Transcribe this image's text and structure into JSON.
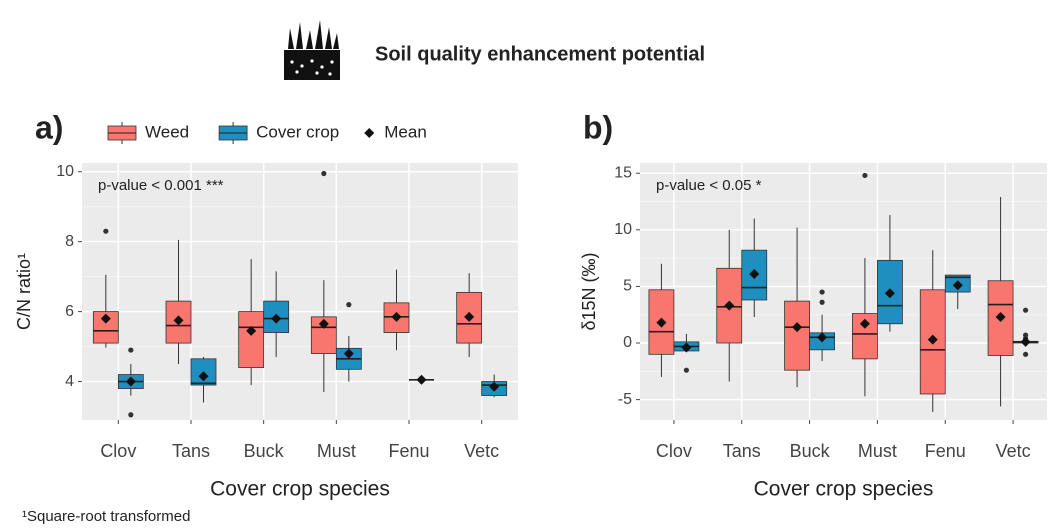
{
  "header": {
    "title": "Soil quality enhancement potential",
    "footnote": "¹Square-root transformed"
  },
  "chart_data": [
    {
      "type": "box",
      "label": "a)",
      "ylabel": "C/N ratio¹",
      "xlabel": "Cover crop species",
      "annotation": "p-value < 0.001 ***",
      "legend": true,
      "mean_label": "Mean",
      "grid": true,
      "ylim": [
        2.9,
        10.25
      ],
      "yticks": [
        4,
        6,
        8,
        10
      ],
      "categories": [
        "Clov",
        "Tans",
        "Buck",
        "Must",
        "Fenu",
        "Vetc"
      ],
      "series": [
        {
          "name": "Weed",
          "color": "#f8766d",
          "low": [
            4.97,
            4.5,
            3.9,
            3.7,
            4.9,
            4.7
          ],
          "q1": [
            5.1,
            5.1,
            4.4,
            4.8,
            5.4,
            5.1
          ],
          "median": [
            5.45,
            5.6,
            5.55,
            5.55,
            5.85,
            5.65
          ],
          "q3": [
            6.0,
            6.3,
            6.0,
            5.85,
            6.25,
            6.55
          ],
          "high": [
            7.05,
            8.05,
            7.5,
            6.9,
            7.2,
            7.1
          ],
          "mean": [
            5.8,
            5.75,
            5.45,
            5.65,
            5.85,
            5.85
          ],
          "outliers": [
            [
              8.3
            ],
            [],
            [],
            [
              9.95
            ],
            [],
            []
          ]
        },
        {
          "name": "Cover crop",
          "color": "#1f8fbf",
          "low": [
            3.6,
            3.4,
            4.7,
            4.0,
            4.05,
            3.55
          ],
          "q1": [
            3.8,
            3.9,
            5.4,
            4.35,
            4.05,
            3.6
          ],
          "median": [
            4.0,
            3.95,
            5.8,
            4.65,
            4.05,
            3.9
          ],
          "q3": [
            4.2,
            4.65,
            6.3,
            4.95,
            4.05,
            4.0
          ],
          "high": [
            4.5,
            4.7,
            7.15,
            5.3,
            4.05,
            4.2
          ],
          "mean": [
            4.0,
            4.15,
            5.8,
            4.8,
            4.05,
            3.85
          ],
          "outliers": [
            [
              4.9,
              3.05
            ],
            [],
            [],
            [
              6.2
            ],
            [],
            []
          ]
        }
      ]
    },
    {
      "type": "box",
      "label": "b)",
      "ylabel": "δ15N (‰)",
      "xlabel": "Cover crop species",
      "annotation": "p-value < 0.05 *",
      "legend": false,
      "grid": true,
      "ylim": [
        -6.8,
        15.9
      ],
      "yticks": [
        -5,
        0,
        5,
        10,
        15
      ],
      "categories": [
        "Clov",
        "Tans",
        "Buck",
        "Must",
        "Fenu",
        "Vetc"
      ],
      "series": [
        {
          "name": "Weed",
          "color": "#f8766d",
          "low": [
            -3,
            -3.4,
            -3.9,
            -4.7,
            -6.1,
            -5.6
          ],
          "q1": [
            -1,
            0,
            -2.4,
            -1.4,
            -4.5,
            -1.1
          ],
          "median": [
            1,
            3.2,
            1.4,
            0.8,
            -0.6,
            3.4
          ],
          "q3": [
            4.7,
            6.6,
            3.7,
            2.6,
            4.7,
            5.5
          ],
          "high": [
            7,
            10,
            10.2,
            7.5,
            8.2,
            12.9
          ],
          "mean": [
            1.8,
            3.3,
            1.4,
            1.7,
            0.3,
            2.3
          ],
          "outliers": [
            [],
            [],
            [],
            [
              14.8
            ],
            [],
            []
          ]
        },
        {
          "name": "Cover crop",
          "color": "#1f8fbf",
          "low": [
            -0.8,
            2.3,
            -1.6,
            1,
            3,
            0
          ],
          "q1": [
            -0.7,
            3.8,
            -0.6,
            1.7,
            4.5,
            0
          ],
          "median": [
            -0.3,
            4.9,
            0.5,
            3.3,
            5.8,
            0.1
          ],
          "q3": [
            0.1,
            8.2,
            0.9,
            7.3,
            6,
            0.15
          ],
          "high": [
            0.8,
            11,
            2.5,
            11.3,
            6,
            0.2
          ],
          "mean": [
            -0.4,
            6.1,
            0.5,
            4.4,
            5.1,
            0.1
          ],
          "outliers": [
            [
              -2.4
            ],
            [],
            [
              3.6,
              4.5
            ],
            [],
            [],
            [
              2.9,
              0.7,
              0.4,
              -1.0
            ]
          ]
        }
      ]
    }
  ]
}
